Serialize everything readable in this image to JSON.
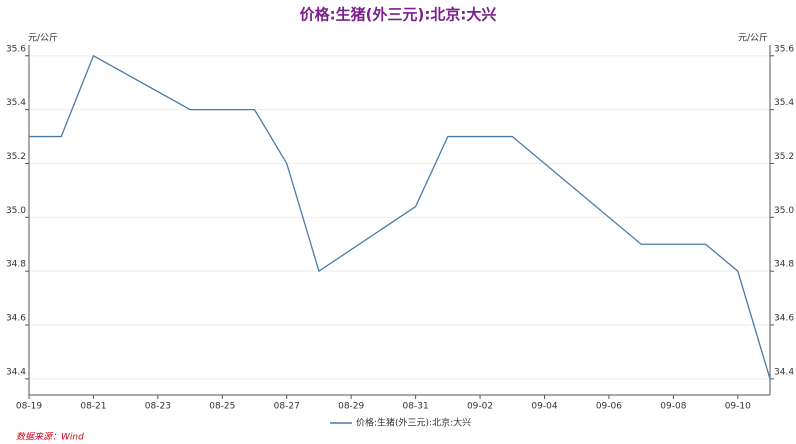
{
  "chart_data": {
    "type": "line",
    "title": "价格:生猪(外三元):北京:大兴",
    "y_unit": "元/公斤",
    "y2_unit": "元/公斤",
    "source": "数据来源：Wind",
    "x": [
      "08-19",
      "08-20",
      "08-21",
      "08-24",
      "08-26",
      "08-27",
      "08-28",
      "08-31",
      "09-01",
      "09-03",
      "09-07",
      "09-09",
      "09-10",
      "09-11"
    ],
    "xlim": [
      "08-19",
      "09-11"
    ],
    "xticks": [
      "08-19",
      "08-21",
      "08-23",
      "08-25",
      "08-27",
      "08-29",
      "08-31",
      "09-02",
      "09-04",
      "09-06",
      "09-08",
      "09-10"
    ],
    "series": [
      {
        "name": "价格:生猪(外三元):北京:大兴",
        "color": "#4a7aa8",
        "values": [
          35.3,
          35.3,
          35.6,
          35.4,
          35.4,
          35.2,
          34.8,
          35.04,
          35.3,
          35.3,
          34.9,
          34.9,
          34.8,
          34.4
        ]
      }
    ],
    "ylim": [
      34.34,
      35.64
    ],
    "yticks": [
      {
        "value": 34.4,
        "label": "34.4"
      },
      {
        "value": 34.6,
        "label": "34.6"
      },
      {
        "value": 34.8,
        "label": "34.8"
      },
      {
        "value": 35.0,
        "label": "35.0"
      },
      {
        "value": 35.2,
        "label": "35.2"
      },
      {
        "value": 35.4,
        "label": "35.4"
      },
      {
        "value": 35.6,
        "label": "35.6"
      }
    ],
    "y2lim": [
      34.34,
      35.64
    ],
    "y2ticks": [
      {
        "value": 34.4,
        "label": "34.4"
      },
      {
        "value": 34.6,
        "label": "34.6"
      },
      {
        "value": 34.8,
        "label": "34.8"
      },
      {
        "value": 35.0,
        "label": "35.0"
      },
      {
        "value": 35.2,
        "label": "35.2"
      },
      {
        "value": 35.4,
        "label": "35.4"
      },
      {
        "value": 35.6,
        "label": "35.6"
      }
    ],
    "grid": true,
    "legend": "bottom"
  }
}
